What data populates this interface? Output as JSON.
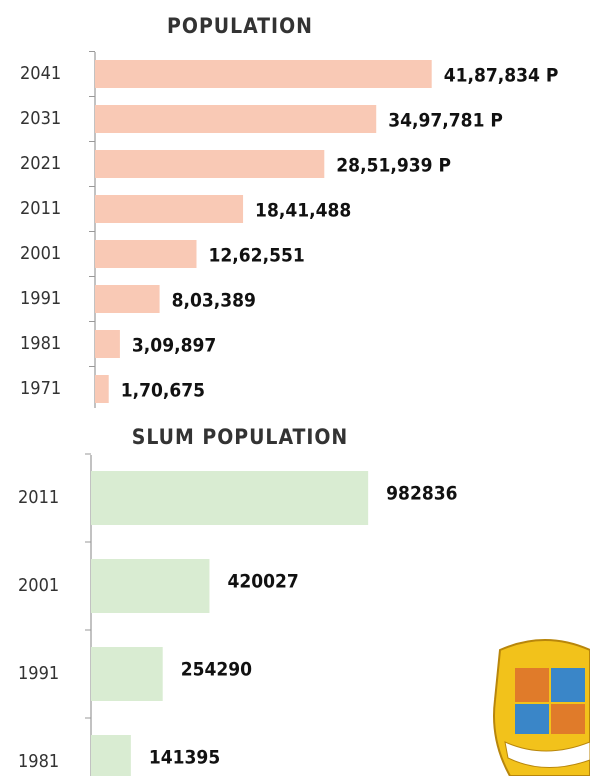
{
  "chart_data": [
    {
      "type": "bar",
      "orientation": "horizontal",
      "title": "POPULATION",
      "categories": [
        "2041",
        "2031",
        "2021",
        "2011",
        "2001",
        "1991",
        "1981",
        "1971"
      ],
      "values": [
        4187834,
        3497781,
        2851939,
        1841488,
        1262551,
        803389,
        309897,
        170675
      ],
      "value_labels": [
        "41,87,834 P",
        "34,97,781 P",
        "28,51,939 P",
        "18,41,488",
        "12,62,551",
        "8,03,389",
        "3,09,897",
        "1,70,675"
      ],
      "color": "#f9c9b5",
      "xlim": [
        0,
        5000000
      ]
    },
    {
      "type": "bar",
      "orientation": "horizontal",
      "title": "SLUM POPULATION",
      "categories": [
        "2011",
        "2001",
        "1991",
        "1981"
      ],
      "values": [
        982836,
        420027,
        254290,
        141395
      ],
      "color": "#d9ecd2",
      "xlim": [
        0,
        1500000
      ]
    }
  ]
}
